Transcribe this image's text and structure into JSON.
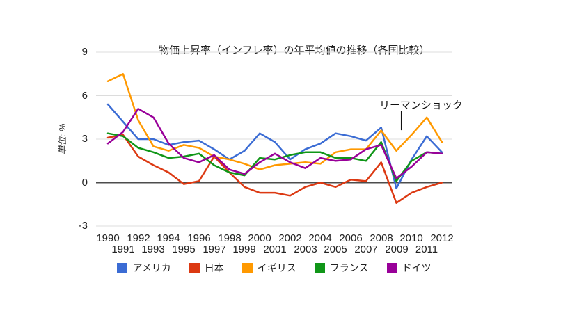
{
  "chart_data": {
    "type": "line",
    "title": "物価上昇率（インフレ率）の年平均値の推移（各国比較）",
    "ylabel": "単位: %",
    "xlabel": "",
    "x": [
      1990,
      1991,
      1992,
      1993,
      1994,
      1995,
      1996,
      1997,
      1998,
      1999,
      2000,
      2001,
      2002,
      2003,
      2004,
      2005,
      2006,
      2007,
      2008,
      2009,
      2010,
      2011,
      2012
    ],
    "series": [
      {
        "name": "アメリカ",
        "color": "#3B6CD4",
        "values": [
          5.4,
          4.2,
          3.0,
          3.0,
          2.6,
          2.8,
          2.9,
          2.3,
          1.6,
          2.2,
          3.4,
          2.8,
          1.6,
          2.3,
          2.7,
          3.4,
          3.2,
          2.9,
          3.8,
          -0.4,
          1.6,
          3.2,
          2.1
        ]
      },
      {
        "name": "日本",
        "color": "#DC3912",
        "values": [
          3.1,
          3.3,
          1.8,
          1.2,
          0.7,
          -0.1,
          0.1,
          1.8,
          0.7,
          -0.3,
          -0.7,
          -0.7,
          -0.9,
          -0.3,
          0.0,
          -0.3,
          0.2,
          0.1,
          1.4,
          -1.4,
          -0.7,
          -0.3,
          0.0
        ]
      },
      {
        "name": "イギリス",
        "color": "#FF9900",
        "values": [
          7.0,
          7.5,
          4.3,
          2.5,
          2.2,
          2.6,
          2.4,
          1.8,
          1.6,
          1.3,
          0.9,
          1.2,
          1.3,
          1.4,
          1.3,
          2.1,
          2.3,
          2.3,
          3.6,
          2.2,
          3.3,
          4.5,
          2.8
        ]
      },
      {
        "name": "フランス",
        "color": "#109618",
        "values": [
          3.4,
          3.2,
          2.4,
          2.1,
          1.7,
          1.8,
          2.0,
          1.2,
          0.7,
          0.5,
          1.7,
          1.6,
          1.9,
          2.1,
          2.1,
          1.7,
          1.7,
          1.5,
          2.8,
          0.1,
          1.5,
          2.1,
          2.0
        ]
      },
      {
        "name": "ドイツ",
        "color": "#990099",
        "values": [
          2.7,
          3.5,
          5.1,
          4.5,
          2.7,
          1.7,
          1.4,
          1.9,
          0.9,
          0.6,
          1.4,
          2.0,
          1.4,
          1.0,
          1.7,
          1.5,
          1.6,
          2.3,
          2.6,
          0.3,
          1.1,
          2.1,
          2.0
        ]
      }
    ],
    "y_ticks": [
      9,
      6,
      3,
      0,
      -3
    ],
    "ylim": [
      -3,
      9
    ],
    "grid": "horizontal",
    "legend_position": "bottom",
    "annotation": {
      "label": "リーマンショック",
      "target_year": 2009.33,
      "line_value_top": 4.92,
      "line_value_bottom": 3.62
    },
    "colors": {
      "gridline": "#dcdcdc",
      "zero_line": "#4d4d4d",
      "axis_text": "#222222",
      "title_text": "#222222"
    }
  }
}
